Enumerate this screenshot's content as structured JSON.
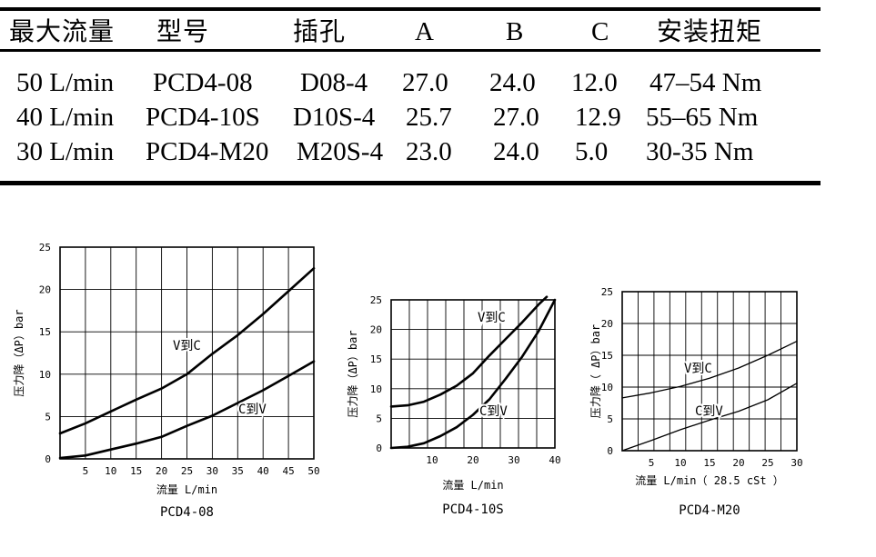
{
  "spec_table": {
    "headers": [
      "最大流量",
      "型号",
      "插孔",
      "A",
      "B",
      "C",
      "安装扭矩"
    ],
    "rows": [
      [
        "50 L/min",
        "PCD4-08",
        "D08-4",
        "27.0",
        "24.0",
        "12.0",
        "47–54 Nm"
      ],
      [
        "40 L/min",
        "PCD4-10S",
        "D10S-4",
        "25.7",
        "27.0",
        "12.9",
        "55–65 Nm"
      ],
      [
        "30 L/min",
        "PCD4-M20",
        "M20S-4",
        "23.0",
        "24.0",
        "5.0",
        "30-35 Nm"
      ]
    ]
  },
  "chart_data": [
    {
      "type": "line",
      "caption": "PCD4-08",
      "xlabel": "流量 L/min",
      "ylabel": "压力降（ΔP）bar",
      "xlim": [
        0,
        50
      ],
      "ylim": [
        0,
        25
      ],
      "xticks": [
        5,
        10,
        15,
        20,
        25,
        30,
        35,
        40,
        45,
        50
      ],
      "yticks": [
        0,
        5,
        10,
        15,
        20,
        25
      ],
      "grid": true,
      "series": [
        {
          "name": "V到C",
          "x": [
            0,
            5,
            10,
            15,
            20,
            25,
            30,
            35,
            40,
            45,
            50
          ],
          "y": [
            3.0,
            4.2,
            5.6,
            7.0,
            8.3,
            10.0,
            12.4,
            14.6,
            17.1,
            19.8,
            22.5
          ]
        },
        {
          "name": "C到V",
          "x": [
            0,
            5,
            10,
            15,
            20,
            25,
            30,
            35,
            40,
            45,
            50
          ],
          "y": [
            0.1,
            0.4,
            1.1,
            1.8,
            2.6,
            3.9,
            5.1,
            6.6,
            8.1,
            9.8,
            11.5
          ]
        }
      ]
    },
    {
      "type": "line",
      "caption": "PCD4-10S",
      "xlabel": "流量 L/min",
      "ylabel": "压力降（ΔP）bar",
      "xlim": [
        0,
        40
      ],
      "ylim": [
        0,
        25
      ],
      "xticks": [
        10,
        20,
        30,
        40
      ],
      "yticks": [
        0,
        5,
        10,
        15,
        20,
        25
      ],
      "grid": true,
      "series": [
        {
          "name": "V到C",
          "x": [
            0,
            4,
            8,
            12,
            16,
            20,
            24,
            28,
            32,
            36,
            38
          ],
          "y": [
            7.0,
            7.2,
            7.8,
            9.0,
            10.5,
            12.6,
            15.6,
            18.4,
            21.2,
            24.2,
            25.5
          ]
        },
        {
          "name": "C到V",
          "x": [
            0,
            4,
            8,
            12,
            16,
            20,
            24,
            28,
            32,
            36,
            40
          ],
          "y": [
            0.0,
            0.2,
            0.8,
            2.0,
            3.5,
            5.6,
            8.2,
            11.7,
            15.4,
            19.7,
            25.0
          ]
        }
      ]
    },
    {
      "type": "line",
      "caption": "PCD4-M20",
      "xlabel": "流量 L/min（ 28.5 cSt ）",
      "ylabel": "压力降（ ΔP）bar",
      "xlim": [
        0,
        30
      ],
      "ylim": [
        0,
        25
      ],
      "xticks": [
        5,
        10,
        15,
        20,
        25,
        30
      ],
      "yticks": [
        0,
        5,
        10,
        15,
        20,
        25
      ],
      "grid": true,
      "series": [
        {
          "name": "V到C",
          "x": [
            0,
            5,
            10,
            15,
            20,
            25,
            30
          ],
          "y": [
            8.3,
            9.1,
            10.1,
            11.4,
            13.0,
            15.0,
            17.2
          ]
        },
        {
          "name": "C到V",
          "x": [
            0,
            5,
            10,
            15,
            20,
            25,
            30
          ],
          "y": [
            0.0,
            1.6,
            3.3,
            4.8,
            6.2,
            8.0,
            10.6
          ]
        }
      ]
    }
  ]
}
